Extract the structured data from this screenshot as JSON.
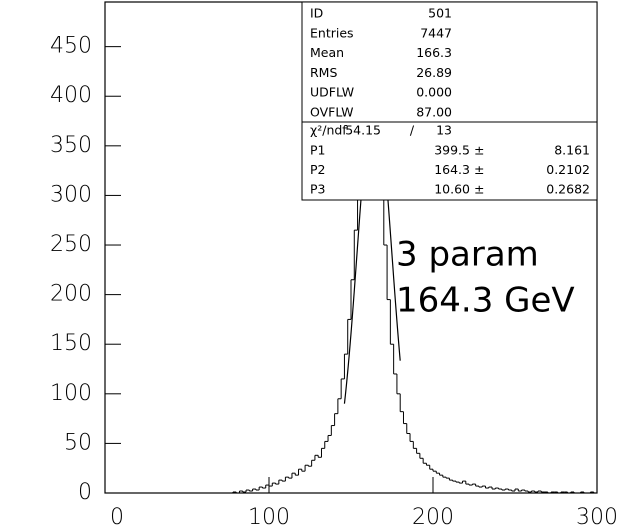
{
  "chart_data": {
    "type": "histogram",
    "xlim": [
      0,
      300
    ],
    "ylim": [
      0,
      495
    ],
    "xticks": [
      0,
      100,
      200,
      300
    ],
    "yticks": [
      0,
      50,
      100,
      150,
      200,
      250,
      300,
      350,
      400,
      450
    ],
    "color": "#000000",
    "bins": [
      0,
      2,
      4,
      6,
      8,
      10,
      12,
      14,
      16,
      18,
      20,
      22,
      24,
      26,
      28,
      30,
      32,
      34,
      36,
      38,
      40,
      42,
      44,
      46,
      48,
      50,
      52,
      54,
      56,
      58,
      60,
      62,
      64,
      66,
      68,
      70,
      72,
      74,
      76,
      78,
      80,
      82,
      84,
      86,
      88,
      90,
      92,
      94,
      96,
      98,
      100,
      102,
      104,
      106,
      108,
      110,
      112,
      114,
      116,
      118,
      120,
      122,
      124,
      126,
      128,
      130,
      132,
      134,
      136,
      138,
      140,
      142,
      144,
      146,
      148,
      150,
      152,
      154,
      156,
      158,
      160,
      162,
      164,
      166,
      168,
      170,
      172,
      174,
      176,
      178,
      180,
      182,
      184,
      186,
      188,
      190,
      192,
      194,
      196,
      198,
      200,
      202,
      204,
      206,
      208,
      210,
      212,
      214,
      216,
      218,
      220,
      222,
      224,
      226,
      228,
      230,
      232,
      234,
      236,
      238,
      240,
      242,
      244,
      246,
      248,
      250,
      252,
      254,
      256,
      258,
      260,
      262,
      264,
      266,
      268,
      270,
      272,
      274,
      276,
      278,
      280,
      282,
      284,
      286,
      288,
      290,
      292,
      294,
      296,
      298,
      300
    ],
    "counts": [
      0,
      0,
      0,
      0,
      0,
      0,
      0,
      0,
      0,
      0,
      0,
      0,
      0,
      0,
      0,
      0,
      0,
      0,
      0,
      0,
      0,
      0,
      0,
      0,
      0,
      0,
      0,
      0,
      0,
      0,
      0,
      0,
      0,
      0,
      0,
      0,
      0,
      0,
      0,
      1,
      0,
      2,
      1,
      3,
      2,
      4,
      3,
      6,
      5,
      8,
      7,
      10,
      9,
      13,
      12,
      16,
      15,
      20,
      18,
      24,
      22,
      28,
      27,
      33,
      38,
      36,
      45,
      52,
      58,
      68,
      80,
      95,
      115,
      140,
      175,
      215,
      265,
      310,
      355,
      390,
      405,
      440,
      385,
      360,
      300,
      250,
      195,
      150,
      120,
      100,
      82,
      70,
      60,
      52,
      45,
      40,
      35,
      30,
      28,
      24,
      22,
      20,
      18,
      16,
      15,
      13,
      12,
      11,
      10,
      12,
      9,
      8,
      9,
      7,
      6,
      7,
      5,
      6,
      4,
      5,
      4,
      3,
      4,
      3,
      2,
      4,
      2,
      3,
      2,
      1,
      2,
      1,
      2,
      1,
      1,
      0,
      1,
      1,
      0,
      1,
      1,
      0,
      1,
      0,
      0,
      1,
      0,
      0,
      1,
      0
    ],
    "fit": {
      "function": "gaussian",
      "range": [
        146,
        180
      ],
      "color": "#000000"
    },
    "stats": {
      "rows": [
        {
          "name": "ID",
          "value": 501
        },
        {
          "name": "Entries",
          "value": 7447
        },
        {
          "name": "Mean",
          "value": 166.3
        },
        {
          "name": "RMS",
          "value": 26.89
        },
        {
          "name": "UDFLW",
          "value": {
            "value": 0,
            "label": "0.000"
          }
        },
        {
          "name": "OVFLW",
          "value": {
            "value": 87,
            "label": "87.00"
          }
        }
      ],
      "chi2": {
        "name": "χ²/ndf",
        "value": 54.15,
        "separator": "/",
        "ndf": 13
      },
      "pm": "±",
      "params": [
        {
          "name": "P1",
          "value": 399.5,
          "error": 8.161
        },
        {
          "name": "P2",
          "value": 164.3,
          "error": 0.2102
        },
        {
          "name": "P3",
          "value": {
            "value": 10.6,
            "label": "10.60"
          },
          "error": 0.2682
        }
      ]
    },
    "annotations": [
      "3 param",
      "164.3 GeV"
    ]
  }
}
